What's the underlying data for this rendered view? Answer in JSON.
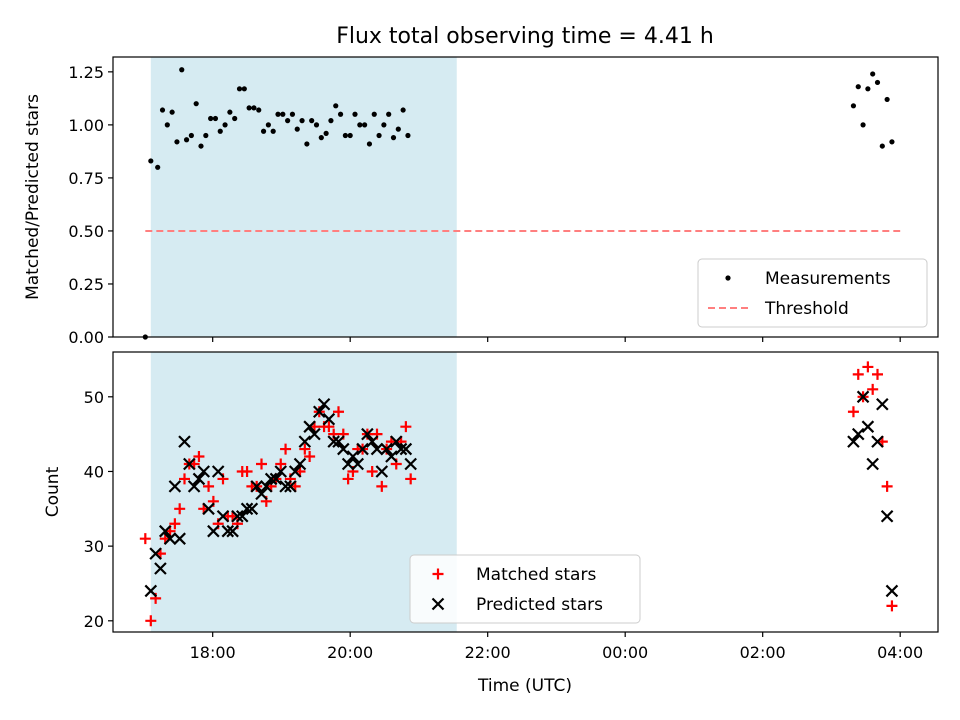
{
  "figure": {
    "title": "Flux total observing time = 4.41 h",
    "xlabel": "Time (UTC)"
  },
  "chart_data": [
    {
      "type": "scatter",
      "name": "ratio-panel",
      "ylabel": "Matched/Predicted stars",
      "x_unit": "hours since 00:00 on the observing date",
      "xlim": [
        16.55,
        28.55
      ],
      "ylim": [
        0.0,
        1.32
      ],
      "yticks": [
        0.0,
        0.25,
        0.5,
        0.75,
        1.0,
        1.25
      ],
      "ytick_labels": [
        "0.00",
        "0.25",
        "0.50",
        "0.75",
        "1.00",
        "1.25"
      ],
      "shaded_x_range": [
        17.1,
        21.55
      ],
      "shade_color": "#add8e6",
      "legend": {
        "position": "lower right",
        "entries": [
          "Measurements",
          "Threshold"
        ]
      },
      "series": [
        {
          "name": "Measurements",
          "style": "dots",
          "color": "#000000",
          "points": [
            [
              17.02,
              0.0
            ],
            [
              17.1,
              0.83
            ],
            [
              17.2,
              0.8
            ],
            [
              17.27,
              1.07
            ],
            [
              17.34,
              1.0
            ],
            [
              17.41,
              1.06
            ],
            [
              17.48,
              0.92
            ],
            [
              17.55,
              1.26
            ],
            [
              17.62,
              0.93
            ],
            [
              17.69,
              0.95
            ],
            [
              17.76,
              1.1
            ],
            [
              17.83,
              0.9
            ],
            [
              17.9,
              0.95
            ],
            [
              17.97,
              1.03
            ],
            [
              18.04,
              1.03
            ],
            [
              18.11,
              0.97
            ],
            [
              18.18,
              1.0
            ],
            [
              18.25,
              1.06
            ],
            [
              18.32,
              1.03
            ],
            [
              18.39,
              1.17
            ],
            [
              18.46,
              1.17
            ],
            [
              18.53,
              1.08
            ],
            [
              18.6,
              1.08
            ],
            [
              18.67,
              1.07
            ],
            [
              18.74,
              0.97
            ],
            [
              18.81,
              1.0
            ],
            [
              18.88,
              0.97
            ],
            [
              18.95,
              1.05
            ],
            [
              19.02,
              1.05
            ],
            [
              19.09,
              1.02
            ],
            [
              19.16,
              1.05
            ],
            [
              19.23,
              0.98
            ],
            [
              19.3,
              1.02
            ],
            [
              19.37,
              0.91
            ],
            [
              19.44,
              1.02
            ],
            [
              19.51,
              1.0
            ],
            [
              19.58,
              0.94
            ],
            [
              19.65,
              0.96
            ],
            [
              19.72,
              1.02
            ],
            [
              19.79,
              1.09
            ],
            [
              19.86,
              1.05
            ],
            [
              19.93,
              0.95
            ],
            [
              20.0,
              0.95
            ],
            [
              20.07,
              1.05
            ],
            [
              20.14,
              1.0
            ],
            [
              20.21,
              1.0
            ],
            [
              20.28,
              0.91
            ],
            [
              20.35,
              1.05
            ],
            [
              20.42,
              0.95
            ],
            [
              20.49,
              1.0
            ],
            [
              20.56,
              1.05
            ],
            [
              20.63,
              0.94
            ],
            [
              20.7,
              0.98
            ],
            [
              20.77,
              1.07
            ],
            [
              20.84,
              0.95
            ],
            [
              27.32,
              1.09
            ],
            [
              27.39,
              1.18
            ],
            [
              27.46,
              1.0
            ],
            [
              27.53,
              1.17
            ],
            [
              27.6,
              1.24
            ],
            [
              27.67,
              1.2
            ],
            [
              27.74,
              0.9
            ],
            [
              27.81,
              1.12
            ],
            [
              27.88,
              0.92
            ]
          ]
        },
        {
          "name": "Threshold",
          "style": "dashed-line",
          "color": "#ff7f7f",
          "points": [
            [
              17.02,
              0.5
            ],
            [
              28.0,
              0.5
            ]
          ]
        }
      ]
    },
    {
      "type": "scatter",
      "name": "count-panel",
      "ylabel": "Count",
      "x_unit": "hours since 00:00 on the observing date",
      "xlim": [
        16.55,
        28.55
      ],
      "ylim": [
        18.5,
        56.0
      ],
      "yticks": [
        20,
        30,
        40,
        50
      ],
      "ytick_labels": [
        "20",
        "30",
        "40",
        "50"
      ],
      "xticks": [
        18,
        20,
        22,
        24,
        26,
        28
      ],
      "xtick_labels": [
        "18:00",
        "20:00",
        "22:00",
        "00:00",
        "02:00",
        "04:00"
      ],
      "shaded_x_range": [
        17.1,
        21.55
      ],
      "shade_color": "#add8e6",
      "legend": {
        "position": "lower center",
        "entries": [
          "Matched stars",
          "Predicted stars"
        ]
      },
      "series": [
        {
          "name": "Matched stars",
          "marker": "plus",
          "color": "#ff0000",
          "points": [
            [
              17.02,
              31
            ],
            [
              17.1,
              20
            ],
            [
              17.17,
              23
            ],
            [
              17.24,
              29
            ],
            [
              17.31,
              31
            ],
            [
              17.38,
              32
            ],
            [
              17.45,
              33
            ],
            [
              17.52,
              35
            ],
            [
              17.59,
              39
            ],
            [
              17.66,
              41
            ],
            [
              17.73,
              41
            ],
            [
              17.8,
              42
            ],
            [
              17.87,
              35
            ],
            [
              17.94,
              38
            ],
            [
              18.01,
              36
            ],
            [
              18.08,
              33
            ],
            [
              18.15,
              39
            ],
            [
              18.22,
              34
            ],
            [
              18.29,
              34
            ],
            [
              18.36,
              33
            ],
            [
              18.43,
              40
            ],
            [
              18.5,
              40
            ],
            [
              18.57,
              38
            ],
            [
              18.64,
              38
            ],
            [
              18.71,
              41
            ],
            [
              18.78,
              36
            ],
            [
              18.85,
              38
            ],
            [
              18.92,
              39
            ],
            [
              18.99,
              41
            ],
            [
              19.06,
              43
            ],
            [
              19.13,
              39
            ],
            [
              19.2,
              38
            ],
            [
              19.27,
              40
            ],
            [
              19.34,
              43
            ],
            [
              19.41,
              42
            ],
            [
              19.48,
              46
            ],
            [
              19.55,
              48
            ],
            [
              19.62,
              46
            ],
            [
              19.69,
              46
            ],
            [
              19.76,
              45
            ],
            [
              19.83,
              48
            ],
            [
              19.9,
              45
            ],
            [
              19.97,
              39
            ],
            [
              20.04,
              40
            ],
            [
              20.11,
              43
            ],
            [
              20.18,
              43
            ],
            [
              20.25,
              45
            ],
            [
              20.32,
              40
            ],
            [
              20.39,
              45
            ],
            [
              20.46,
              38
            ],
            [
              20.53,
              43
            ],
            [
              20.6,
              44
            ],
            [
              20.67,
              41
            ],
            [
              20.74,
              44
            ],
            [
              20.81,
              46
            ],
            [
              20.88,
              39
            ],
            [
              27.32,
              48
            ],
            [
              27.39,
              53
            ],
            [
              27.46,
              50
            ],
            [
              27.53,
              54
            ],
            [
              27.6,
              51
            ],
            [
              27.67,
              53
            ],
            [
              27.74,
              44
            ],
            [
              27.81,
              38
            ],
            [
              27.88,
              22
            ]
          ]
        },
        {
          "name": "Predicted stars",
          "marker": "x",
          "color": "#000000",
          "points": [
            [
              17.1,
              24
            ],
            [
              17.17,
              29
            ],
            [
              17.24,
              27
            ],
            [
              17.31,
              32
            ],
            [
              17.38,
              31
            ],
            [
              17.45,
              38
            ],
            [
              17.52,
              31
            ],
            [
              17.59,
              44
            ],
            [
              17.66,
              41
            ],
            [
              17.73,
              38
            ],
            [
              17.8,
              39
            ],
            [
              17.87,
              40
            ],
            [
              17.94,
              35
            ],
            [
              18.01,
              32
            ],
            [
              18.08,
              40
            ],
            [
              18.15,
              34
            ],
            [
              18.22,
              32
            ],
            [
              18.29,
              32
            ],
            [
              18.36,
              34
            ],
            [
              18.43,
              34
            ],
            [
              18.5,
              35
            ],
            [
              18.57,
              35
            ],
            [
              18.64,
              38
            ],
            [
              18.71,
              37
            ],
            [
              18.78,
              38
            ],
            [
              18.85,
              39
            ],
            [
              18.92,
              39
            ],
            [
              18.99,
              40
            ],
            [
              19.06,
              38
            ],
            [
              19.13,
              38
            ],
            [
              19.2,
              40
            ],
            [
              19.27,
              41
            ],
            [
              19.34,
              44
            ],
            [
              19.41,
              46
            ],
            [
              19.48,
              45
            ],
            [
              19.55,
              48
            ],
            [
              19.62,
              49
            ],
            [
              19.69,
              47
            ],
            [
              19.76,
              44
            ],
            [
              19.83,
              44
            ],
            [
              19.9,
              43
            ],
            [
              19.97,
              41
            ],
            [
              20.04,
              42
            ],
            [
              20.11,
              41
            ],
            [
              20.18,
              43
            ],
            [
              20.25,
              45
            ],
            [
              20.32,
              44
            ],
            [
              20.39,
              43
            ],
            [
              20.46,
              40
            ],
            [
              20.53,
              43
            ],
            [
              20.6,
              42
            ],
            [
              20.67,
              44
            ],
            [
              20.74,
              43
            ],
            [
              20.81,
              43
            ],
            [
              20.88,
              41
            ],
            [
              27.32,
              44
            ],
            [
              27.39,
              45
            ],
            [
              27.46,
              50
            ],
            [
              27.53,
              46
            ],
            [
              27.6,
              41
            ],
            [
              27.67,
              44
            ],
            [
              27.74,
              49
            ],
            [
              27.81,
              34
            ],
            [
              27.88,
              24
            ]
          ]
        }
      ]
    }
  ]
}
